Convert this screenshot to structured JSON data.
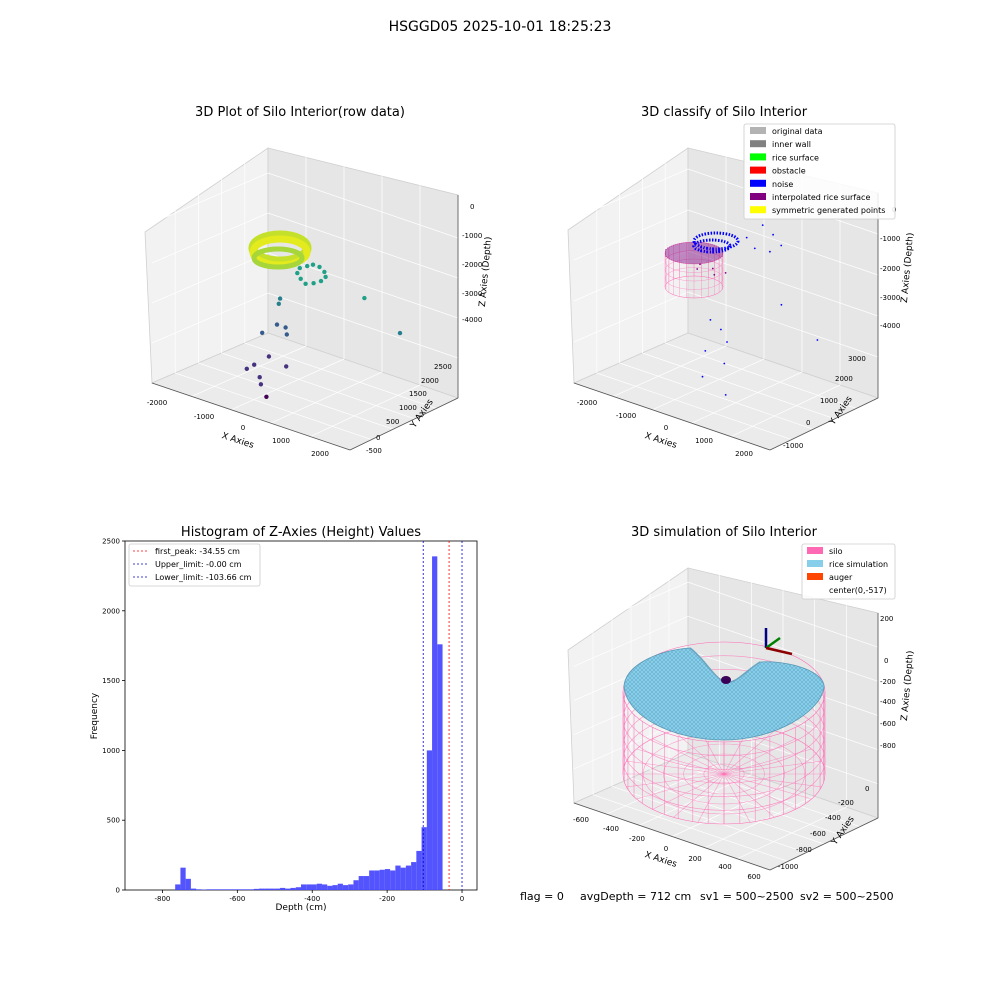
{
  "suptitle": "HSGGD05 2025-10-01 18:25:23",
  "footer": {
    "flag": "flag = 0",
    "avg_depth": "avgDepth = 712 cm",
    "sv1": "sv1 = 500~2500",
    "sv2": "sv2 = 500~2500"
  },
  "panels": {
    "raw": {
      "title": "3D Plot of Silo Interior(row data)",
      "xlabel": "X Axies",
      "ylabel": "Y Axies",
      "zlabel": "Z Axies (Depth)",
      "xticks": [
        "-2000",
        "-1000",
        "0",
        "1000",
        "2000"
      ],
      "yticks": [
        "-500",
        "0",
        "500",
        "1000",
        "1500",
        "2000",
        "2500"
      ],
      "zticks": [
        "0",
        "-1000",
        "-2000",
        "-3000",
        "-4000"
      ]
    },
    "classify": {
      "title": "3D classify of Silo Interior",
      "xlabel": "X Axies",
      "ylabel": "Y Axies",
      "zlabel": "Z Axies (Depth)",
      "xticks": [
        "-2000",
        "-1000",
        "0",
        "1000",
        "2000"
      ],
      "yticks": [
        "-1000",
        "0",
        "1000",
        "2000",
        "3000"
      ],
      "zticks": [
        "0",
        "-1000",
        "-2000",
        "-3000",
        "-4000"
      ],
      "legend": [
        {
          "label": "original data",
          "color": "#b3b3b3"
        },
        {
          "label": "inner wall",
          "color": "#808080"
        },
        {
          "label": "rice surface",
          "color": "#00ff00"
        },
        {
          "label": "obstacle",
          "color": "#ff0000"
        },
        {
          "label": "noise",
          "color": "#0000ff"
        },
        {
          "label": "interpolated rice surface",
          "color": "#800080"
        },
        {
          "label": "symmetric generated points",
          "color": "#ffff00"
        }
      ]
    },
    "simulation": {
      "title": "3D simulation of Silo Interior",
      "xlabel": "X Axies",
      "ylabel": "Y Axies",
      "zlabel": "Z Axies (Depth)",
      "xticks": [
        "-600",
        "-400",
        "-200",
        "0",
        "200",
        "400",
        "600"
      ],
      "yticks": [
        "-1000",
        "-800",
        "-600",
        "-400",
        "-200",
        "0"
      ],
      "zticks": [
        "200",
        "0",
        "-200",
        "-400",
        "-600",
        "-800"
      ],
      "legend": [
        {
          "label": "silo",
          "color": "#ff69b4"
        },
        {
          "label": "rice simulation",
          "color": "#87ceeb"
        },
        {
          "label": "auger",
          "color": "#ff4500"
        },
        {
          "label": "center(0,-517)",
          "color": ""
        }
      ]
    }
  },
  "chart_data": [
    {
      "type": "scatter",
      "title": "3D Plot of Silo Interior(row data)",
      "xlabel": "X Axies",
      "ylabel": "Y Axies",
      "zlabel": "Z Axies (Depth)",
      "xlim": [
        -2300,
        2300
      ],
      "ylim": [
        -700,
        2800
      ],
      "zlim": [
        -4700,
        200
      ],
      "points": [
        {
          "x": -300,
          "y": 1300,
          "z": -1900
        },
        {
          "x": -200,
          "y": 1400,
          "z": -1850
        },
        {
          "x": -100,
          "y": 1450,
          "z": -1800
        },
        {
          "x": 50,
          "y": 1450,
          "z": -1800
        },
        {
          "x": 200,
          "y": 1400,
          "z": -1850
        },
        {
          "x": 300,
          "y": 1300,
          "z": -1900
        },
        {
          "x": 300,
          "y": 1150,
          "z": -1950
        },
        {
          "x": 200,
          "y": 1050,
          "z": -2000
        },
        {
          "x": 50,
          "y": 1000,
          "z": -2050
        },
        {
          "x": -100,
          "y": 1050,
          "z": -2000
        },
        {
          "x": -250,
          "y": 1150,
          "z": -1950
        },
        {
          "x": 1200,
          "y": 1300,
          "z": -2100
        },
        {
          "x": 2100,
          "y": 1200,
          "z": -2600
        },
        {
          "x": -400,
          "y": 800,
          "z": -2500
        },
        {
          "x": -500,
          "y": 900,
          "z": -2700
        },
        {
          "x": -400,
          "y": 700,
          "z": -3100
        },
        {
          "x": -200,
          "y": 700,
          "z": -3100
        },
        {
          "x": -100,
          "y": 600,
          "z": -3200
        },
        {
          "x": -600,
          "y": 500,
          "z": -3300
        },
        {
          "x": -300,
          "y": 300,
          "z": -3700
        },
        {
          "x": 100,
          "y": 300,
          "z": -3800
        },
        {
          "x": -500,
          "y": 100,
          "z": -3900
        },
        {
          "x": -300,
          "y": 0,
          "z": -4100
        },
        {
          "x": -200,
          "y": -100,
          "z": -4200
        },
        {
          "x": -600,
          "y": 0,
          "z": -4000
        },
        {
          "x": 0,
          "y": -200,
          "z": -4400
        }
      ]
    },
    {
      "type": "scatter",
      "title": "3D classify of Silo Interior",
      "xlabel": "X Axies",
      "ylabel": "Y Axies",
      "zlabel": "Z Axies (Depth)",
      "xlim": [
        -2300,
        2300
      ],
      "ylim": [
        -1300,
        3300
      ],
      "zlim": [
        -4700,
        200
      ],
      "legend_position": "upper-right",
      "series": [
        {
          "name": "noise",
          "points": [
            {
              "x": 200,
              "y": 2200,
              "z": -1000
            },
            {
              "x": 500,
              "y": 2100,
              "z": -1100
            },
            {
              "x": 800,
              "y": 1900,
              "z": -1200
            },
            {
              "x": 700,
              "y": 1600,
              "z": -1300
            },
            {
              "x": 400,
              "y": 1500,
              "z": -1300
            },
            {
              "x": 100,
              "y": 1700,
              "z": -1200
            },
            {
              "x": 1300,
              "y": 1000,
              "z": -2200
            },
            {
              "x": 2200,
              "y": 900,
              "z": -2700
            },
            {
              "x": -200,
              "y": 700,
              "z": -3000
            },
            {
              "x": 100,
              "y": 600,
              "z": -3100
            },
            {
              "x": 300,
              "y": 500,
              "z": -3300
            },
            {
              "x": -100,
              "y": 300,
              "z": -3600
            },
            {
              "x": 400,
              "y": 200,
              "z": -3700
            },
            {
              "x": 0,
              "y": 0,
              "z": -4100
            },
            {
              "x": 600,
              "y": -100,
              "z": -4300
            }
          ]
        },
        {
          "name": "interpolated rice surface",
          "points": [
            {
              "x": -500,
              "y": 800,
              "z": -1800
            },
            {
              "x": -200,
              "y": 800,
              "z": -1800
            },
            {
              "x": 100,
              "y": 800,
              "z": -1800
            },
            {
              "x": -400,
              "y": 500,
              "z": -1800
            },
            {
              "x": 0,
              "y": 500,
              "z": -1800
            }
          ]
        }
      ]
    },
    {
      "type": "bar",
      "title": "Histogram of Z-Axies (Height) Values",
      "xlabel": "Depth (cm)",
      "ylabel": "Frequency",
      "xlim": [
        -900,
        40
      ],
      "ylim": [
        0,
        2500
      ],
      "bin_width": 14,
      "bins": [
        {
          "x": -766,
          "y": 40
        },
        {
          "x": -752,
          "y": 160
        },
        {
          "x": -738,
          "y": 80
        },
        {
          "x": -724,
          "y": 10
        },
        {
          "x": -710,
          "y": 5
        },
        {
          "x": -696,
          "y": 3
        },
        {
          "x": -682,
          "y": 5
        },
        {
          "x": -668,
          "y": 5
        },
        {
          "x": -654,
          "y": 5
        },
        {
          "x": -640,
          "y": 5
        },
        {
          "x": -626,
          "y": 5
        },
        {
          "x": -612,
          "y": 5
        },
        {
          "x": -598,
          "y": 5
        },
        {
          "x": -584,
          "y": 5
        },
        {
          "x": -570,
          "y": 5
        },
        {
          "x": -556,
          "y": 8
        },
        {
          "x": -542,
          "y": 10
        },
        {
          "x": -528,
          "y": 10
        },
        {
          "x": -514,
          "y": 10
        },
        {
          "x": -500,
          "y": 10
        },
        {
          "x": -486,
          "y": 15
        },
        {
          "x": -472,
          "y": 10
        },
        {
          "x": -458,
          "y": 15
        },
        {
          "x": -444,
          "y": 20
        },
        {
          "x": -430,
          "y": 40
        },
        {
          "x": -416,
          "y": 40
        },
        {
          "x": -402,
          "y": 40
        },
        {
          "x": -388,
          "y": 45
        },
        {
          "x": -374,
          "y": 40
        },
        {
          "x": -360,
          "y": 30
        },
        {
          "x": -346,
          "y": 35
        },
        {
          "x": -332,
          "y": 45
        },
        {
          "x": -318,
          "y": 35
        },
        {
          "x": -304,
          "y": 40
        },
        {
          "x": -290,
          "y": 70
        },
        {
          "x": -276,
          "y": 100
        },
        {
          "x": -262,
          "y": 100
        },
        {
          "x": -248,
          "y": 140
        },
        {
          "x": -234,
          "y": 140
        },
        {
          "x": -220,
          "y": 145
        },
        {
          "x": -206,
          "y": 150
        },
        {
          "x": -192,
          "y": 140
        },
        {
          "x": -178,
          "y": 175
        },
        {
          "x": -164,
          "y": 160
        },
        {
          "x": -150,
          "y": 175
        },
        {
          "x": -136,
          "y": 200
        },
        {
          "x": -122,
          "y": 280
        },
        {
          "x": -108,
          "y": 450
        },
        {
          "x": -94,
          "y": 1000
        },
        {
          "x": -80,
          "y": 2390
        },
        {
          "x": -66,
          "y": 1760
        }
      ],
      "lines": [
        {
          "label": "first_peak: -34.55 cm",
          "x": -34.55,
          "color": "#ff0000"
        },
        {
          "label": "Upper_limit: -0.00 cm",
          "x": 0,
          "color": "#0000cc"
        },
        {
          "label": "Lower_limit: -103.66 cm",
          "x": -103.66,
          "color": "#0000cc"
        }
      ],
      "xticks": [
        "-800",
        "-600",
        "-400",
        "-200",
        "0"
      ],
      "yticks": [
        "0",
        "500",
        "1000",
        "1500",
        "2000",
        "2500"
      ],
      "bar_color": "#4b4bff",
      "legend_position": "upper-left"
    },
    {
      "type": "surface",
      "title": "3D simulation of Silo Interior",
      "xlabel": "X Axies",
      "ylabel": "Y Axies",
      "zlabel": "Z Axies (Depth)",
      "xlim": [
        -650,
        650
      ],
      "ylim": [
        -1150,
        120
      ],
      "zlim": [
        -900,
        350
      ],
      "silo_center": [
        0,
        -517
      ],
      "legend_position": "upper-right"
    }
  ]
}
